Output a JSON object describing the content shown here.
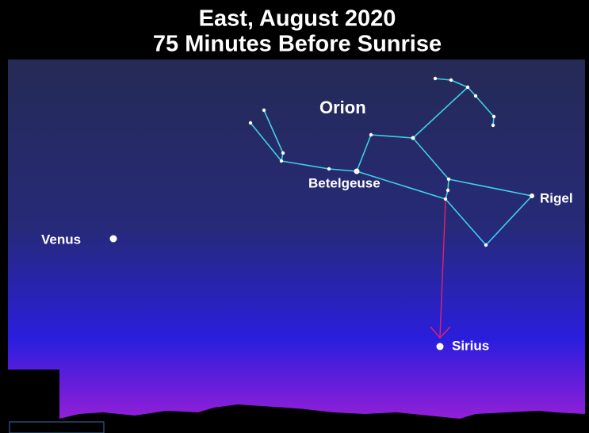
{
  "title": [
    "East, August 2020",
    "75 Minutes Before Sunrise"
  ],
  "labels": {
    "constellation": "Orion",
    "betelgeuse": "Betelgeuse",
    "rigel": "Rigel",
    "venus": "Venus",
    "sirius": "Sirius"
  }
}
